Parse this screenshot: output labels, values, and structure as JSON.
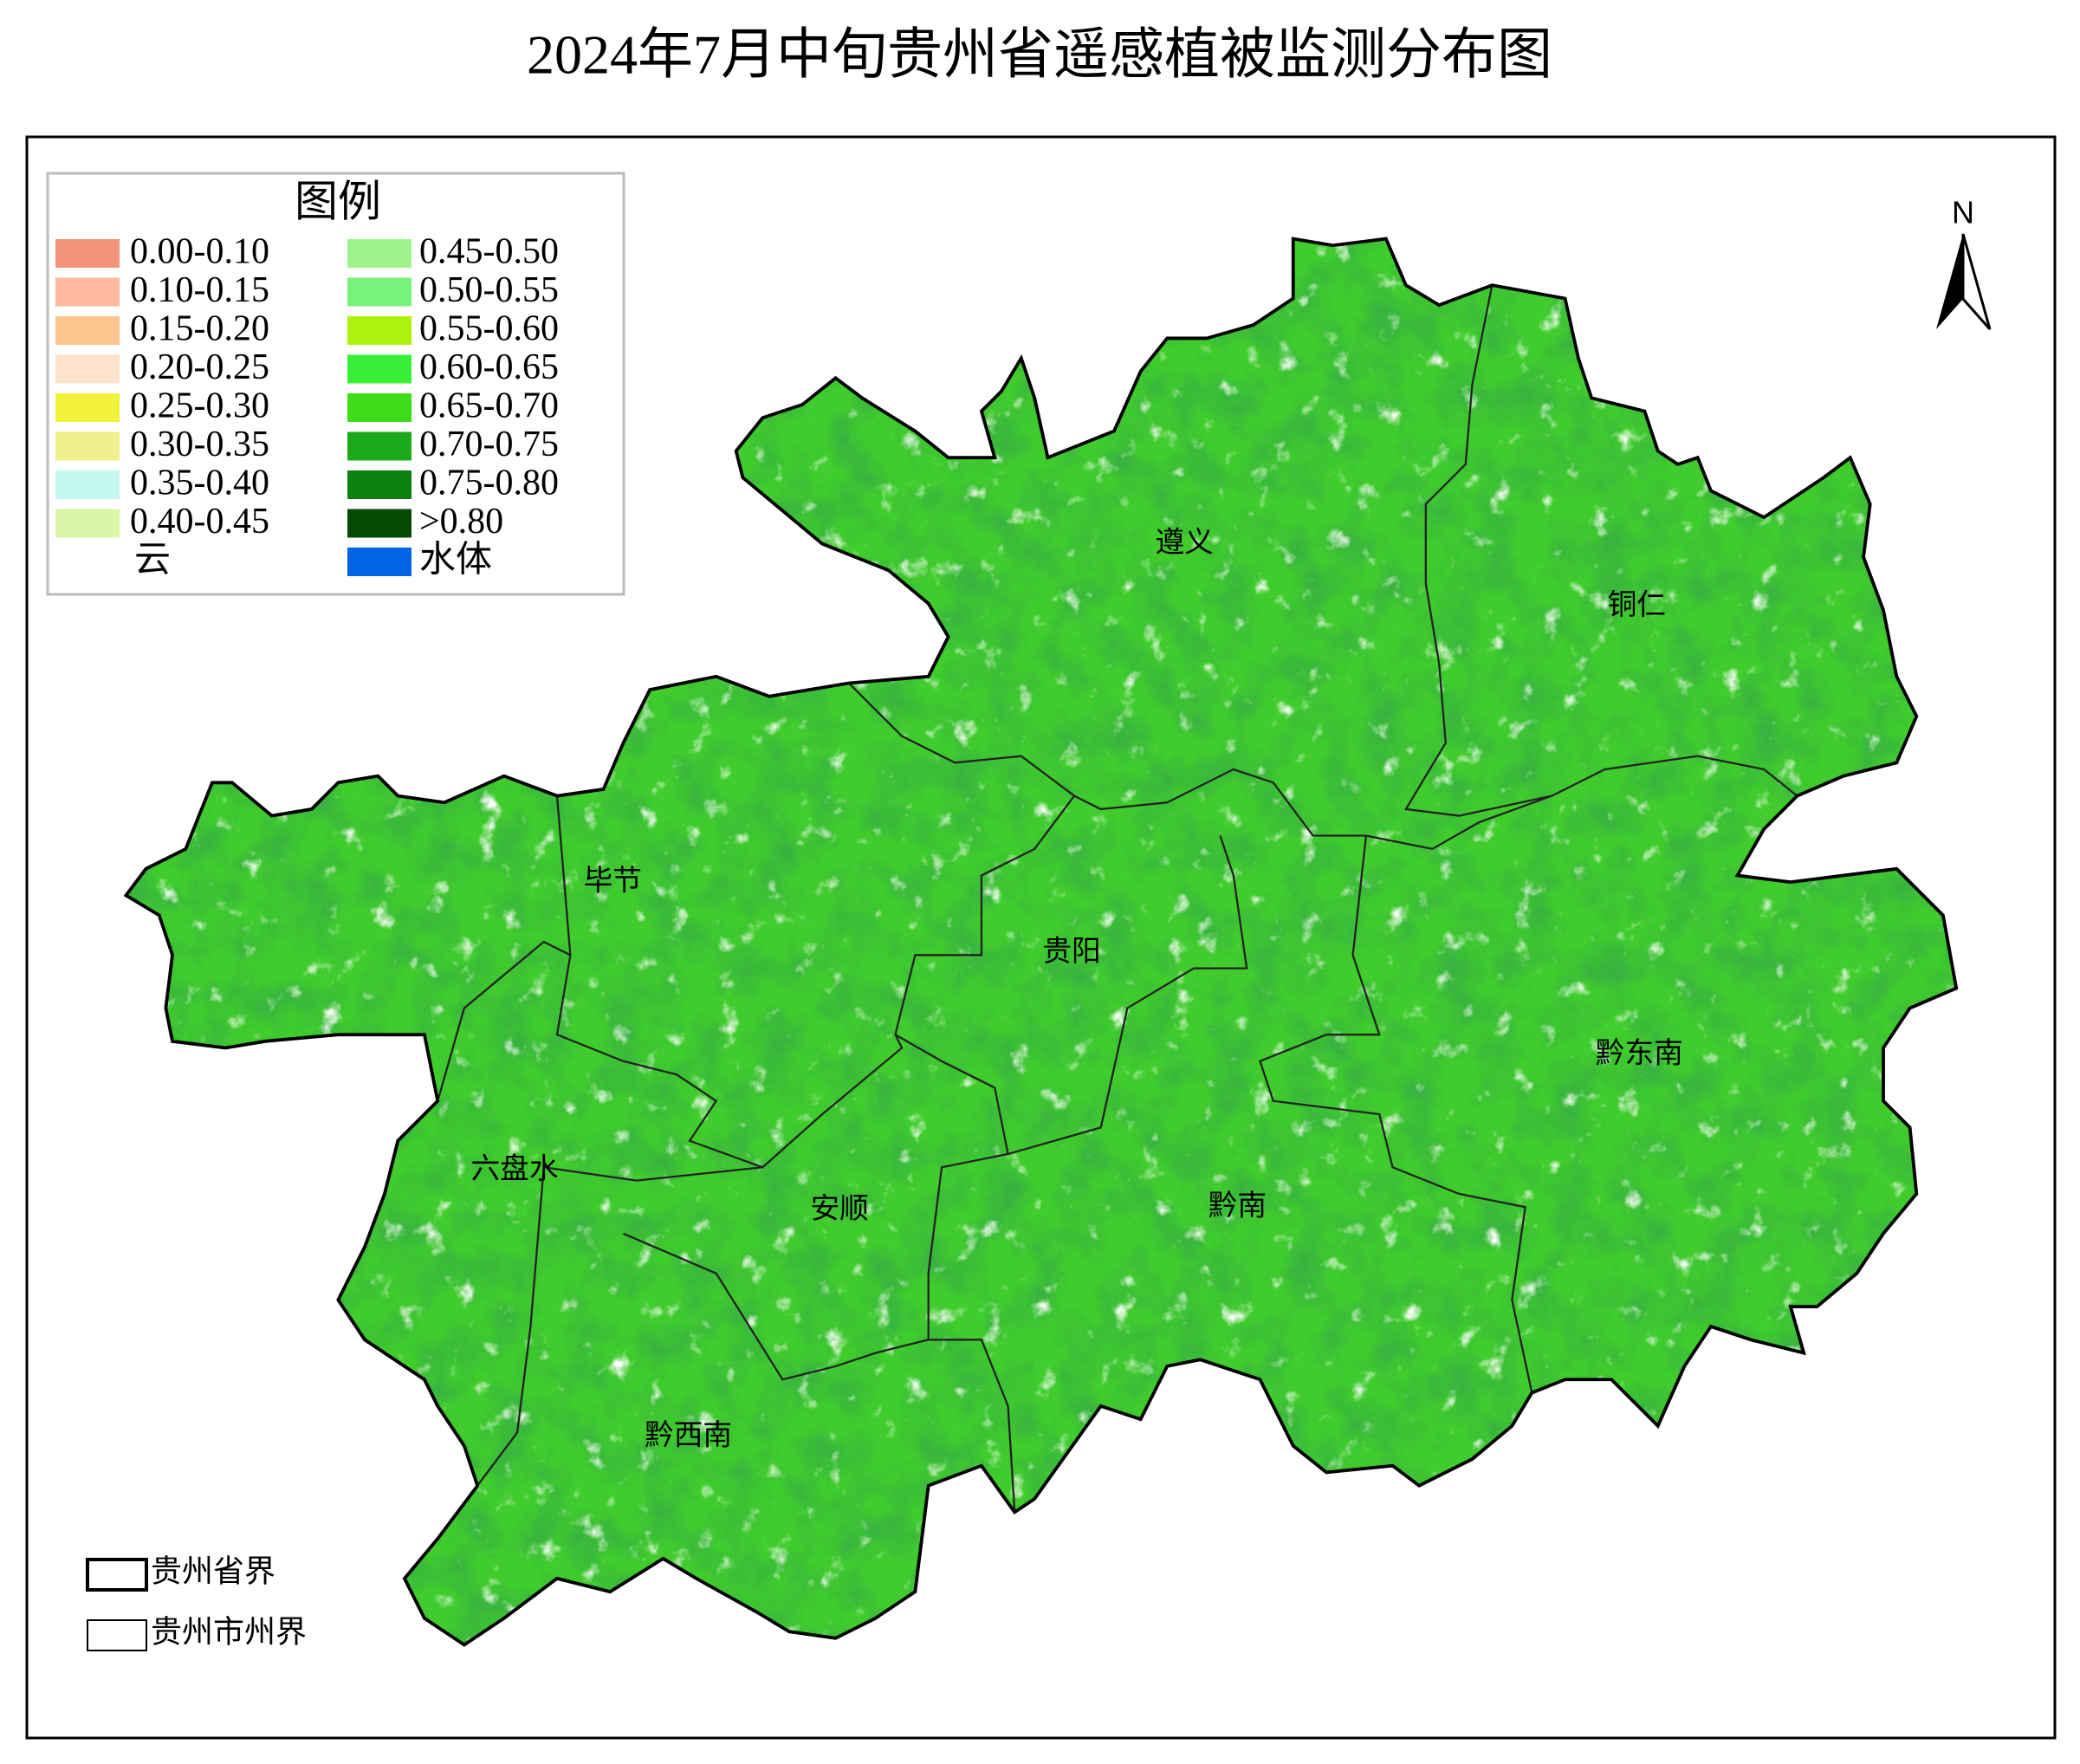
{
  "title": "2024年7月中旬贵州省遥感植被监测分布图",
  "legend": {
    "title": "图例",
    "items": [
      {
        "label": "0.00-0.10",
        "color": "#f4937a"
      },
      {
        "label": "0.10-0.15",
        "color": "#fcb9a0"
      },
      {
        "label": "0.15-0.20",
        "color": "#fcc48e"
      },
      {
        "label": "0.20-0.25",
        "color": "#fde3cb"
      },
      {
        "label": "0.25-0.30",
        "color": "#f2f23a"
      },
      {
        "label": "0.30-0.35",
        "color": "#f0f08a"
      },
      {
        "label": "0.35-0.40",
        "color": "#c4f7f0"
      },
      {
        "label": "0.40-0.45",
        "color": "#d7f7a7"
      },
      {
        "label": "云",
        "color": "#ffffff"
      },
      {
        "label": "0.45-0.50",
        "color": "#9df48d"
      },
      {
        "label": "0.50-0.55",
        "color": "#77f27b"
      },
      {
        "label": "0.55-0.60",
        "color": "#acf20d"
      },
      {
        "label": "0.60-0.65",
        "color": "#38ef38"
      },
      {
        "label": "0.65-0.70",
        "color": "#3ddc18"
      },
      {
        "label": "0.70-0.75",
        "color": "#1aaa1a"
      },
      {
        "label": "0.75-0.80",
        "color": "#0b820e"
      },
      {
        "label": ">0.80",
        "color": "#064a06"
      },
      {
        "label": "水体",
        "color": "#0064e6"
      }
    ]
  },
  "north": "N",
  "cities": [
    "遵义",
    "铜仁",
    "毕节",
    "贵阳",
    "黔东南",
    "六盘水",
    "安顺",
    "黔南",
    "黔西南"
  ],
  "boundary_legend": [
    "贵州省界",
    "贵州市州界"
  ]
}
